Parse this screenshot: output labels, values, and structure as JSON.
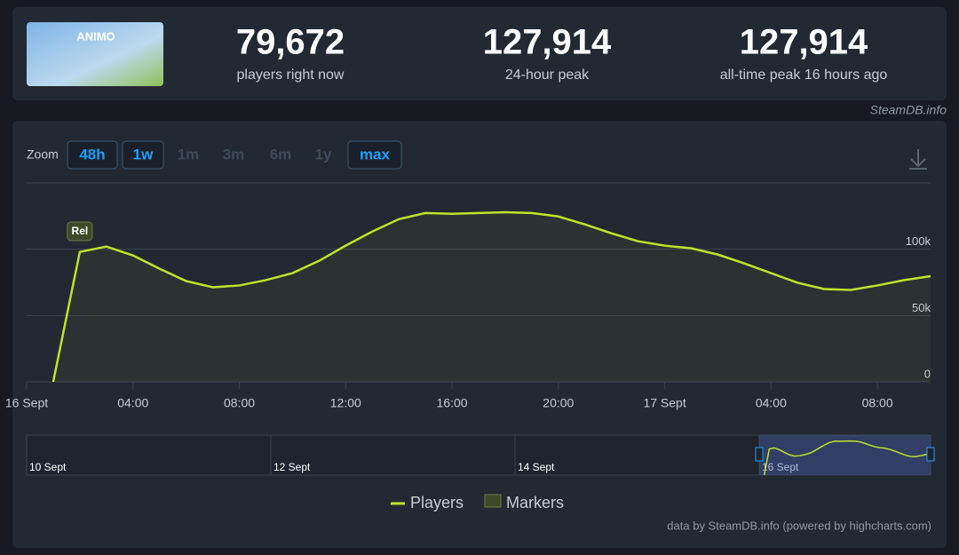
{
  "header": {
    "game_logo": "ANIMO",
    "stats": [
      {
        "value": "79,672",
        "label": "players right now"
      },
      {
        "value": "127,914",
        "label": "24-hour peak"
      },
      {
        "value": "127,914",
        "label": "all-time peak 16 hours ago"
      }
    ],
    "source": "SteamDB.info"
  },
  "zoom": {
    "label": "Zoom",
    "buttons": [
      {
        "label": "48h",
        "state": "enabled"
      },
      {
        "label": "1w",
        "state": "enabled"
      },
      {
        "label": "1m",
        "state": "disabled"
      },
      {
        "label": "3m",
        "state": "disabled"
      },
      {
        "label": "6m",
        "state": "disabled"
      },
      {
        "label": "1y",
        "state": "disabled"
      },
      {
        "label": "max",
        "state": "enabled"
      }
    ]
  },
  "chart_data": {
    "type": "line",
    "x": [
      1,
      2,
      3,
      4,
      5,
      6,
      7,
      8,
      9,
      10,
      11,
      12,
      13,
      14,
      15,
      16,
      17,
      18,
      19,
      20,
      21,
      22,
      23,
      24,
      25,
      26,
      27,
      28,
      29,
      30,
      31,
      32,
      33,
      34
    ],
    "series": [
      {
        "name": "Players",
        "color": "#bfe22b",
        "values": [
          0,
          98000,
          102000,
          95300,
          85300,
          76000,
          71300,
          72700,
          76700,
          82000,
          91300,
          102700,
          113300,
          122700,
          127300,
          126700,
          127300,
          127914,
          127300,
          124700,
          118700,
          112000,
          106000,
          102700,
          100700,
          96000,
          89300,
          82000,
          74700,
          70000,
          69300,
          72700,
          76700,
          79672
        ]
      }
    ],
    "xlim": [
      0,
      34
    ],
    "xticks": [
      {
        "value": 0,
        "label": "16 Sept"
      },
      {
        "value": 4,
        "label": "04:00"
      },
      {
        "value": 8,
        "label": "08:00"
      },
      {
        "value": 12,
        "label": "12:00"
      },
      {
        "value": 16,
        "label": "16:00"
      },
      {
        "value": 20,
        "label": "20:00"
      },
      {
        "value": 24,
        "label": "17 Sept"
      },
      {
        "value": 28,
        "label": "04:00"
      },
      {
        "value": 32,
        "label": "08:00"
      }
    ],
    "ylim": [
      0,
      150000
    ],
    "yticks": [
      0,
      {
        "value": 50000,
        "label": "50k"
      },
      {
        "value": 100000,
        "label": "100k"
      }
    ],
    "grid": true,
    "annotations": [
      {
        "label": "Rel",
        "x": 2
      }
    ],
    "legend": [
      "Players",
      "Markers"
    ]
  },
  "navigator": {
    "labels": [
      "10 Sept",
      "12 Sept",
      "14 Sept",
      "16 Sept"
    ]
  },
  "credits": "data by SteamDB.info (powered by highcharts.com)"
}
